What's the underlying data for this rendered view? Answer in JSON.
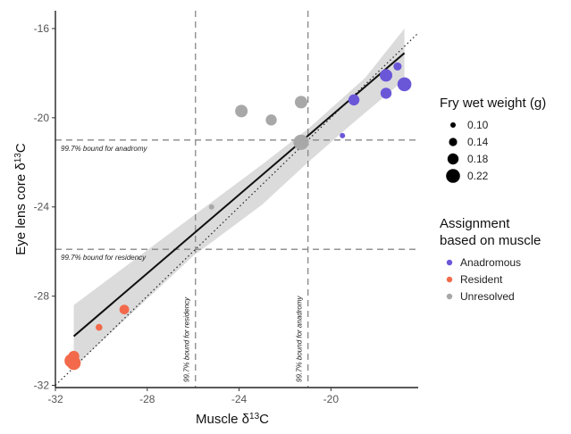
{
  "chart_data": {
    "type": "scatter",
    "xlabel": "Muscle δ",
    "xlabel_sup": "13",
    "xlabel_suffix": "C",
    "ylabel": "Eye lens core δ",
    "ylabel_sup": "13",
    "ylabel_suffix": "C",
    "xlim": [
      -32,
      -16.2
    ],
    "ylim": [
      -32.1,
      -15.2
    ],
    "x_ticks": [
      -32,
      -28,
      -24,
      -20
    ],
    "x_tick_labels": [
      "-32",
      "-28",
      "-24",
      "-20"
    ],
    "y_ticks": [
      -32,
      -28,
      -24,
      -20,
      -16
    ],
    "y_tick_labels": [
      "-32",
      "-28",
      "-24",
      "-20",
      "-16"
    ],
    "bounds": {
      "horizontal": [
        {
          "y": -21.0,
          "label": "99.7% bound for anadromy"
        },
        {
          "y": -25.9,
          "label": "99.7% bound for residency"
        }
      ],
      "vertical": [
        {
          "x": -25.9,
          "label": "99.7% bound for residency"
        },
        {
          "x": -21.0,
          "label": "99.7% bound for anadromy"
        }
      ]
    },
    "one_to_one_line": {
      "x": [
        -32,
        -16.2
      ],
      "y": [
        -32,
        -16.2
      ]
    },
    "regression_line": {
      "x": [
        -31.2,
        -16.8
      ],
      "y": [
        -29.8,
        -17.1
      ]
    },
    "confidence_band": {
      "upper": [
        [
          -31.2,
          -28.4
        ],
        [
          -26.0,
          -24.4
        ],
        [
          -23.0,
          -22.1
        ],
        [
          -21.0,
          -20.5
        ],
        [
          -18.5,
          -18.2
        ],
        [
          -16.8,
          -16.0
        ]
      ],
      "lower": [
        [
          -16.8,
          -18.3
        ],
        [
          -19.0,
          -20.2
        ],
        [
          -21.0,
          -22.0
        ],
        [
          -23.0,
          -23.9
        ],
        [
          -26.0,
          -26.2
        ],
        [
          -31.2,
          -31.2
        ]
      ]
    },
    "series": [
      {
        "name": "Anadromous",
        "color": "#6a57d8",
        "points": [
          {
            "x": -19.5,
            "y": -20.8,
            "w": 0.1
          },
          {
            "x": -19.0,
            "y": -19.2,
            "w": 0.18
          },
          {
            "x": -17.6,
            "y": -18.1,
            "w": 0.2
          },
          {
            "x": -17.1,
            "y": -17.7,
            "w": 0.14
          },
          {
            "x": -17.6,
            "y": -18.9,
            "w": 0.18
          },
          {
            "x": -16.8,
            "y": -18.5,
            "w": 0.22
          }
        ]
      },
      {
        "name": "Resident",
        "color": "#f26a4b",
        "points": [
          {
            "x": -31.2,
            "y": -30.7,
            "w": 0.18
          },
          {
            "x": -31.3,
            "y": -30.9,
            "w": 0.22
          },
          {
            "x": -31.2,
            "y": -31.0,
            "w": 0.22
          },
          {
            "x": -30.1,
            "y": -29.4,
            "w": 0.12
          },
          {
            "x": -29.0,
            "y": -28.6,
            "w": 0.16
          }
        ]
      },
      {
        "name": "Unresolved",
        "color": "#a8a8a8",
        "points": [
          {
            "x": -25.2,
            "y": -24.0,
            "w": 0.1
          },
          {
            "x": -23.9,
            "y": -19.7,
            "w": 0.2
          },
          {
            "x": -22.6,
            "y": -20.1,
            "w": 0.18
          },
          {
            "x": -21.3,
            "y": -19.3,
            "w": 0.2
          },
          {
            "x": -21.3,
            "y": -21.1,
            "w": 0.24
          }
        ]
      }
    ],
    "legend_size": {
      "title": "Fry wet weight (g)",
      "entries": [
        {
          "label": "0.10",
          "w": 0.1
        },
        {
          "label": "0.14",
          "w": 0.14
        },
        {
          "label": "0.18",
          "w": 0.18
        },
        {
          "label": "0.22",
          "w": 0.22
        }
      ]
    },
    "legend_color": {
      "title_line1": "Assignment",
      "title_line2": "based on muscle",
      "entries": [
        {
          "label": "Anadromous",
          "color": "#6a57d8"
        },
        {
          "label": "Resident",
          "color": "#f26a4b"
        },
        {
          "label": "Unresolved",
          "color": "#a8a8a8"
        }
      ]
    }
  }
}
